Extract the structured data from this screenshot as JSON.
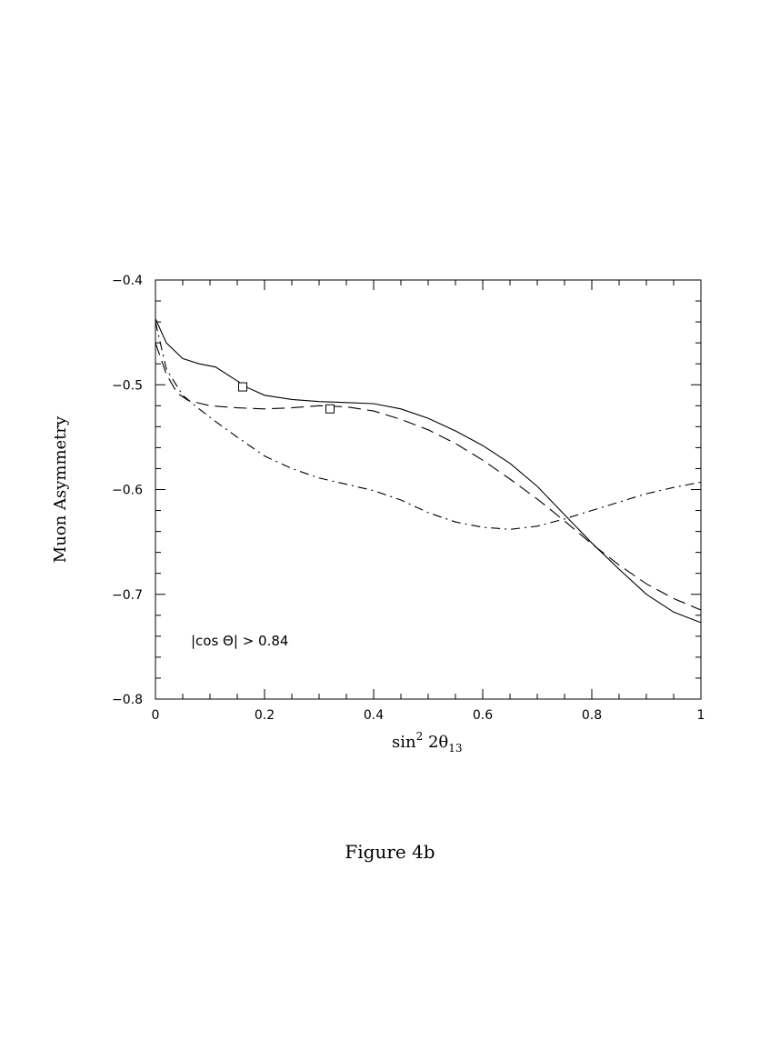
{
  "chart_data": {
    "type": "line",
    "title": "",
    "xlabel": "sin² 2θ₁₃",
    "xlabel_parts": {
      "main": "sin",
      "sup": "2",
      "mid": " 2θ",
      "sub": "13"
    },
    "ylabel": "Muon Asymmetry",
    "xlim": [
      0,
      1
    ],
    "ylim": [
      -0.8,
      -0.4
    ],
    "xticks": [
      0,
      0.2,
      0.4,
      0.6,
      0.8,
      1
    ],
    "xtick_labels": [
      "0",
      "0.2",
      "0.4",
      "0.6",
      "0.8",
      "1"
    ],
    "yticks": [
      -0.8,
      -0.7,
      -0.6,
      -0.5,
      -0.4
    ],
    "ytick_labels": [
      "−0.8",
      "−0.7",
      "−0.6",
      "−0.5",
      "−0.4"
    ],
    "grid": false,
    "annotation": "|cos Θ| > 0.84",
    "series": [
      {
        "style": "solid",
        "points": [
          [
            0,
            -0.437
          ],
          [
            0.02,
            -0.46
          ],
          [
            0.05,
            -0.475
          ],
          [
            0.08,
            -0.48
          ],
          [
            0.11,
            -0.483
          ],
          [
            0.14,
            -0.493
          ],
          [
            0.17,
            -0.503
          ],
          [
            0.2,
            -0.51
          ],
          [
            0.25,
            -0.514
          ],
          [
            0.3,
            -0.516
          ],
          [
            0.35,
            -0.517
          ],
          [
            0.4,
            -0.518
          ],
          [
            0.45,
            -0.523
          ],
          [
            0.5,
            -0.532
          ],
          [
            0.55,
            -0.544
          ],
          [
            0.6,
            -0.558
          ],
          [
            0.65,
            -0.575
          ],
          [
            0.7,
            -0.597
          ],
          [
            0.75,
            -0.624
          ],
          [
            0.8,
            -0.651
          ],
          [
            0.85,
            -0.676
          ],
          [
            0.9,
            -0.7
          ],
          [
            0.95,
            -0.717
          ],
          [
            1.0,
            -0.727
          ]
        ],
        "marker": [
          0.16,
          -0.502
        ]
      },
      {
        "style": "dashed",
        "points": [
          [
            0,
            -0.46
          ],
          [
            0.02,
            -0.49
          ],
          [
            0.04,
            -0.508
          ],
          [
            0.06,
            -0.515
          ],
          [
            0.1,
            -0.52
          ],
          [
            0.15,
            -0.522
          ],
          [
            0.2,
            -0.523
          ],
          [
            0.25,
            -0.522
          ],
          [
            0.3,
            -0.52
          ],
          [
            0.35,
            -0.521
          ],
          [
            0.4,
            -0.525
          ],
          [
            0.45,
            -0.533
          ],
          [
            0.5,
            -0.543
          ],
          [
            0.55,
            -0.556
          ],
          [
            0.6,
            -0.572
          ],
          [
            0.65,
            -0.59
          ],
          [
            0.7,
            -0.609
          ],
          [
            0.75,
            -0.63
          ],
          [
            0.8,
            -0.652
          ],
          [
            0.85,
            -0.672
          ],
          [
            0.9,
            -0.69
          ],
          [
            0.95,
            -0.704
          ],
          [
            1.0,
            -0.715
          ]
        ],
        "marker": [
          0.32,
          -0.523
        ]
      },
      {
        "style": "dash-dot",
        "points": [
          [
            0,
            -0.44
          ],
          [
            0.02,
            -0.485
          ],
          [
            0.05,
            -0.51
          ],
          [
            0.08,
            -0.523
          ],
          [
            0.11,
            -0.535
          ],
          [
            0.15,
            -0.55
          ],
          [
            0.2,
            -0.568
          ],
          [
            0.25,
            -0.58
          ],
          [
            0.3,
            -0.589
          ],
          [
            0.35,
            -0.595
          ],
          [
            0.4,
            -0.601
          ],
          [
            0.45,
            -0.61
          ],
          [
            0.5,
            -0.622
          ],
          [
            0.55,
            -0.631
          ],
          [
            0.6,
            -0.636
          ],
          [
            0.65,
            -0.638
          ],
          [
            0.7,
            -0.635
          ],
          [
            0.75,
            -0.628
          ],
          [
            0.8,
            -0.62
          ],
          [
            0.85,
            -0.612
          ],
          [
            0.9,
            -0.604
          ],
          [
            0.95,
            -0.598
          ],
          [
            1.0,
            -0.593
          ]
        ]
      }
    ]
  },
  "caption": "Figure 4b"
}
